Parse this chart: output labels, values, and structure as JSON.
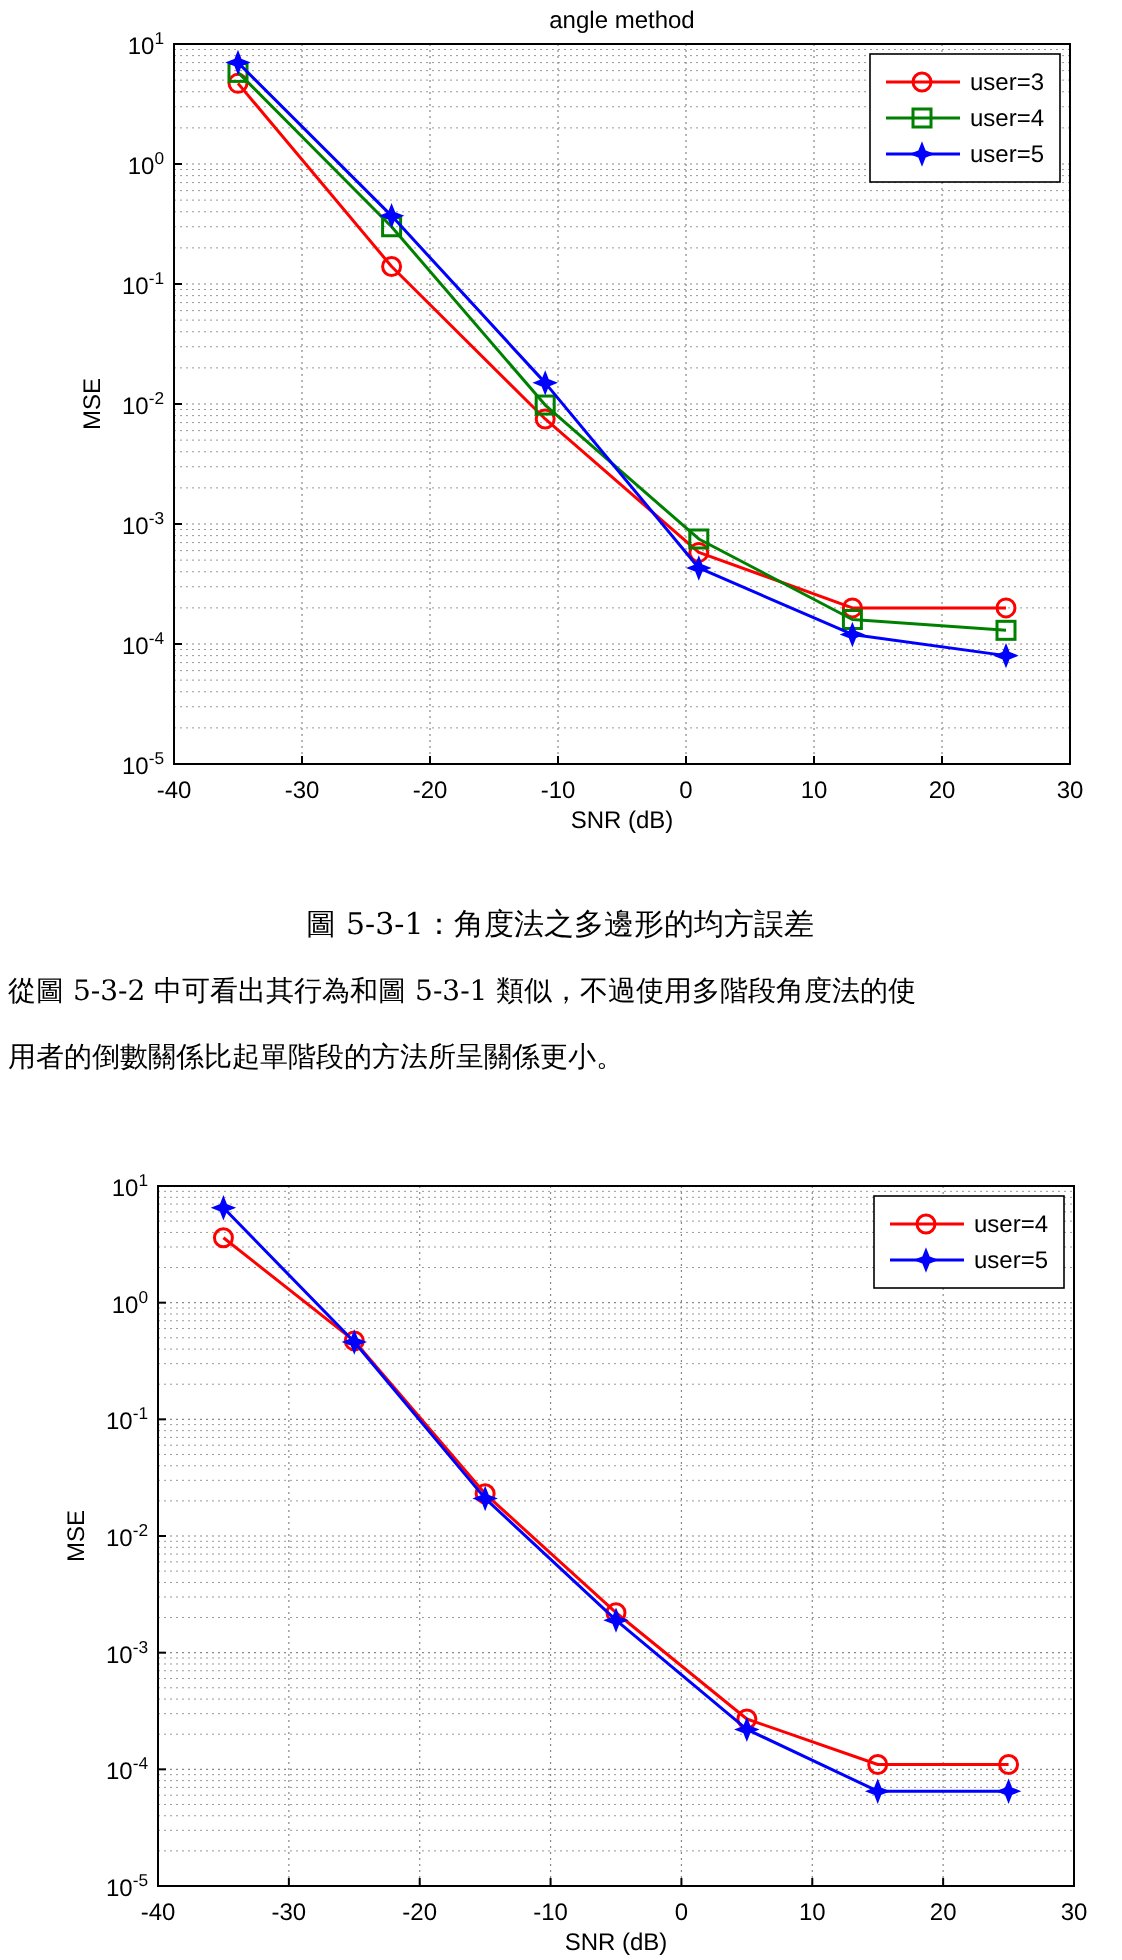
{
  "chart_data": [
    {
      "type": "line",
      "title": "angle method",
      "xlabel": "SNR (dB)",
      "ylabel": "MSE",
      "log": "y",
      "grid": true,
      "legend": "top right",
      "line_style": "solid",
      "xlim": [
        -40,
        30
      ],
      "xticks": [
        -40,
        -30,
        -20,
        -10,
        0,
        10,
        20,
        30
      ],
      "ylim": [
        1e-05,
        10
      ],
      "yticks": [
        {
          "value": 1e-05,
          "label": "10$^{-5}$"
        },
        {
          "value": 0.0001,
          "label": "10$^{-4}$"
        },
        {
          "value": 0.001,
          "label": "10$^{-3}$"
        },
        {
          "value": 0.01,
          "label": "10$^{-2}$"
        },
        {
          "value": 0.1,
          "label": "10$^{-1}$"
        },
        {
          "value": 1,
          "label": "10$^{0}$"
        },
        {
          "value": 10,
          "label": "10$^{1}$"
        }
      ],
      "x": [
        -35,
        -23,
        -11,
        1,
        13,
        25
      ],
      "series": [
        {
          "name": "user=3",
          "color": "#ff0000",
          "marker": "circle",
          "values": [
            4.7,
            0.14,
            0.0075,
            0.00058,
            0.0002,
            0.0002
          ]
        },
        {
          "name": "user=4",
          "color": "#008000",
          "marker": "square",
          "values": [
            5.8,
            0.3,
            0.0098,
            0.00075,
            0.00016,
            0.00013
          ]
        },
        {
          "name": "user=5",
          "color": "#0000ff",
          "marker": "star",
          "values": [
            7,
            0.37,
            0.015,
            0.00043,
            0.00012,
            8e-05
          ]
        }
      ],
      "annotations": [
        "圖 5-3-1：角度法之多邊形的均方誤差",
        "從圖 5-3-2 中可看出其行為和圖 5-3-1 類似，不過使用多階段角度法的使",
        "用者的倒數關係比起單階段的方法所呈關係更小。"
      ]
    },
    {
      "type": "line",
      "xlabel": "SNR (dB)",
      "ylabel": "MSE",
      "log": "y",
      "grid": true,
      "legend": "top right",
      "line_style": "solid",
      "xlim": [
        -40,
        30
      ],
      "xticks": [
        -40,
        -30,
        -20,
        -10,
        0,
        10,
        20,
        30
      ],
      "ylim": [
        1e-05,
        10
      ],
      "yticks": [
        {
          "value": 1e-05,
          "label": "10$^{-5}$"
        },
        {
          "value": 0.0001,
          "label": "10$^{-4}$"
        },
        {
          "value": 0.001,
          "label": "10$^{-3}$"
        },
        {
          "value": 0.01,
          "label": "10$^{-2}$"
        },
        {
          "value": 0.1,
          "label": "10$^{-1}$"
        },
        {
          "value": 1,
          "label": "10$^{0}$"
        },
        {
          "value": 10,
          "label": "10$^{1}$"
        }
      ],
      "x": [
        -35,
        -25,
        -15,
        -5,
        5,
        15,
        25
      ],
      "series": [
        {
          "name": "user=4",
          "color": "#ff0000",
          "marker": "circle",
          "values": [
            3.6,
            0.47,
            0.023,
            0.0022,
            0.00027,
            0.00011,
            0.00011
          ]
        },
        {
          "name": "user=5",
          "color": "#0000ff",
          "marker": "star",
          "values": [
            6.5,
            0.46,
            0.021,
            0.0019,
            0.00022,
            6.5e-05,
            6.5e-05
          ]
        }
      ]
    }
  ]
}
